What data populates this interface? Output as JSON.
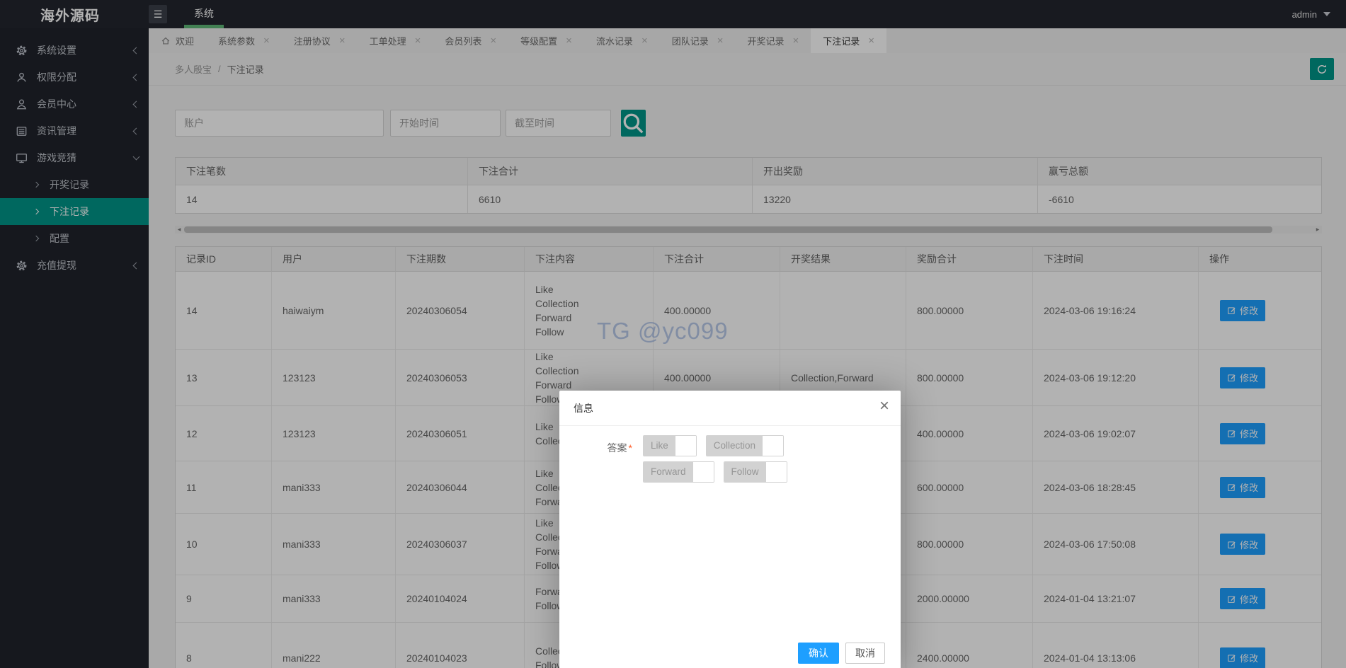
{
  "topbar": {
    "logo": "海外源码",
    "nav_system": "系统",
    "user": "admin"
  },
  "sidebar": {
    "items": [
      {
        "label": "系统设置",
        "icon": "gear-icon",
        "expanded": false
      },
      {
        "label": "权限分配",
        "icon": "user-badge-icon",
        "expanded": false
      },
      {
        "label": "会员中心",
        "icon": "user-icon",
        "expanded": false
      },
      {
        "label": "资讯管理",
        "icon": "news-icon",
        "expanded": false
      },
      {
        "label": "游戏竞猜",
        "icon": "monitor-icon",
        "expanded": true,
        "children": [
          {
            "label": "开奖记录",
            "active": false
          },
          {
            "label": "下注记录",
            "active": true
          },
          {
            "label": "配置",
            "active": false
          }
        ]
      },
      {
        "label": "充值提现",
        "icon": "coin-gear-icon",
        "expanded": false
      }
    ]
  },
  "tabs": {
    "items": [
      {
        "label": "欢迎",
        "home": true,
        "closable": false,
        "active": false
      },
      {
        "label": "系统参数",
        "home": false,
        "closable": true,
        "active": false
      },
      {
        "label": "注册协议",
        "home": false,
        "closable": true,
        "active": false
      },
      {
        "label": "工单处理",
        "home": false,
        "closable": true,
        "active": false
      },
      {
        "label": "会员列表",
        "home": false,
        "closable": true,
        "active": false
      },
      {
        "label": "等级配置",
        "home": false,
        "closable": true,
        "active": false
      },
      {
        "label": "流水记录",
        "home": false,
        "closable": true,
        "active": false
      },
      {
        "label": "团队记录",
        "home": false,
        "closable": true,
        "active": false
      },
      {
        "label": "开奖记录",
        "home": false,
        "closable": true,
        "active": false
      },
      {
        "label": "下注记录",
        "home": false,
        "closable": true,
        "active": true
      }
    ],
    "close_glyph": "×"
  },
  "breadcrumb": {
    "parent": "多人殷宝",
    "separator": "/",
    "current": "下注记录"
  },
  "filters": {
    "account_placeholder": "账户",
    "start_placeholder": "开始时间",
    "end_placeholder": "截至时间"
  },
  "summary": {
    "headers": [
      "下注笔数",
      "下注合计",
      "开出奖励",
      "赢亏总额"
    ],
    "values": [
      "14",
      "6610",
      "13220",
      "-6610"
    ]
  },
  "table": {
    "headers": [
      "记录ID",
      "用户",
      "下注期数",
      "下注内容",
      "下注合计",
      "开奖结果",
      "奖励合计",
      "下注时间",
      "操作"
    ],
    "action_label": "修改",
    "rows": [
      {
        "id": "14",
        "user": "haiwaiym",
        "period": "20240306054",
        "content": [
          "Like",
          "Collection",
          "Forward",
          "Follow"
        ],
        "total": "400.00000",
        "result": "",
        "reward": "800.00000",
        "time": "2024-03-06 19:16:24"
      },
      {
        "id": "13",
        "user": "123123",
        "period": "20240306053",
        "content": [
          "Like",
          "Collection",
          "Forward",
          "Follow"
        ],
        "total": "400.00000",
        "result": "Collection,Forward",
        "reward": "800.00000",
        "time": "2024-03-06 19:12:20"
      },
      {
        "id": "12",
        "user": "123123",
        "period": "20240306051",
        "content": [
          "Like",
          "Collection"
        ],
        "total": "",
        "result": "",
        "reward": "400.00000",
        "time": "2024-03-06 19:02:07"
      },
      {
        "id": "11",
        "user": "mani333",
        "period": "20240306044",
        "content": [
          "Like",
          "Collection",
          "Forward"
        ],
        "total": "",
        "result": "",
        "reward": "600.00000",
        "time": "2024-03-06 18:28:45"
      },
      {
        "id": "10",
        "user": "mani333",
        "period": "20240306037",
        "content": [
          "Like",
          "Collection",
          "Forward",
          "Follow"
        ],
        "total": "",
        "result": "",
        "reward": "800.00000",
        "time": "2024-03-06 17:50:08"
      },
      {
        "id": "9",
        "user": "mani333",
        "period": "20240104024",
        "content": [
          "Forward",
          "Follow"
        ],
        "total": "",
        "result": "",
        "reward": "2000.00000",
        "time": "2024-01-04 13:21:07"
      },
      {
        "id": "8",
        "user": "mani222",
        "period": "20240104023",
        "content": [
          "Collection",
          "Follow"
        ],
        "total": "",
        "result": "",
        "reward": "2400.00000",
        "time": "2024-01-04 13:13:06"
      }
    ]
  },
  "watermark": "TG @yc099",
  "modal": {
    "title": "信息",
    "close_glyph": "×",
    "label": "答案",
    "required_mark": "*",
    "options": [
      "Like",
      "Collection",
      "Forward",
      "Follow"
    ],
    "confirm": "确认",
    "cancel": "取消"
  },
  "colors": {
    "teal": "#009688",
    "green": "#5FB878",
    "blue": "#1E9FFF",
    "red": "#FF5722"
  }
}
